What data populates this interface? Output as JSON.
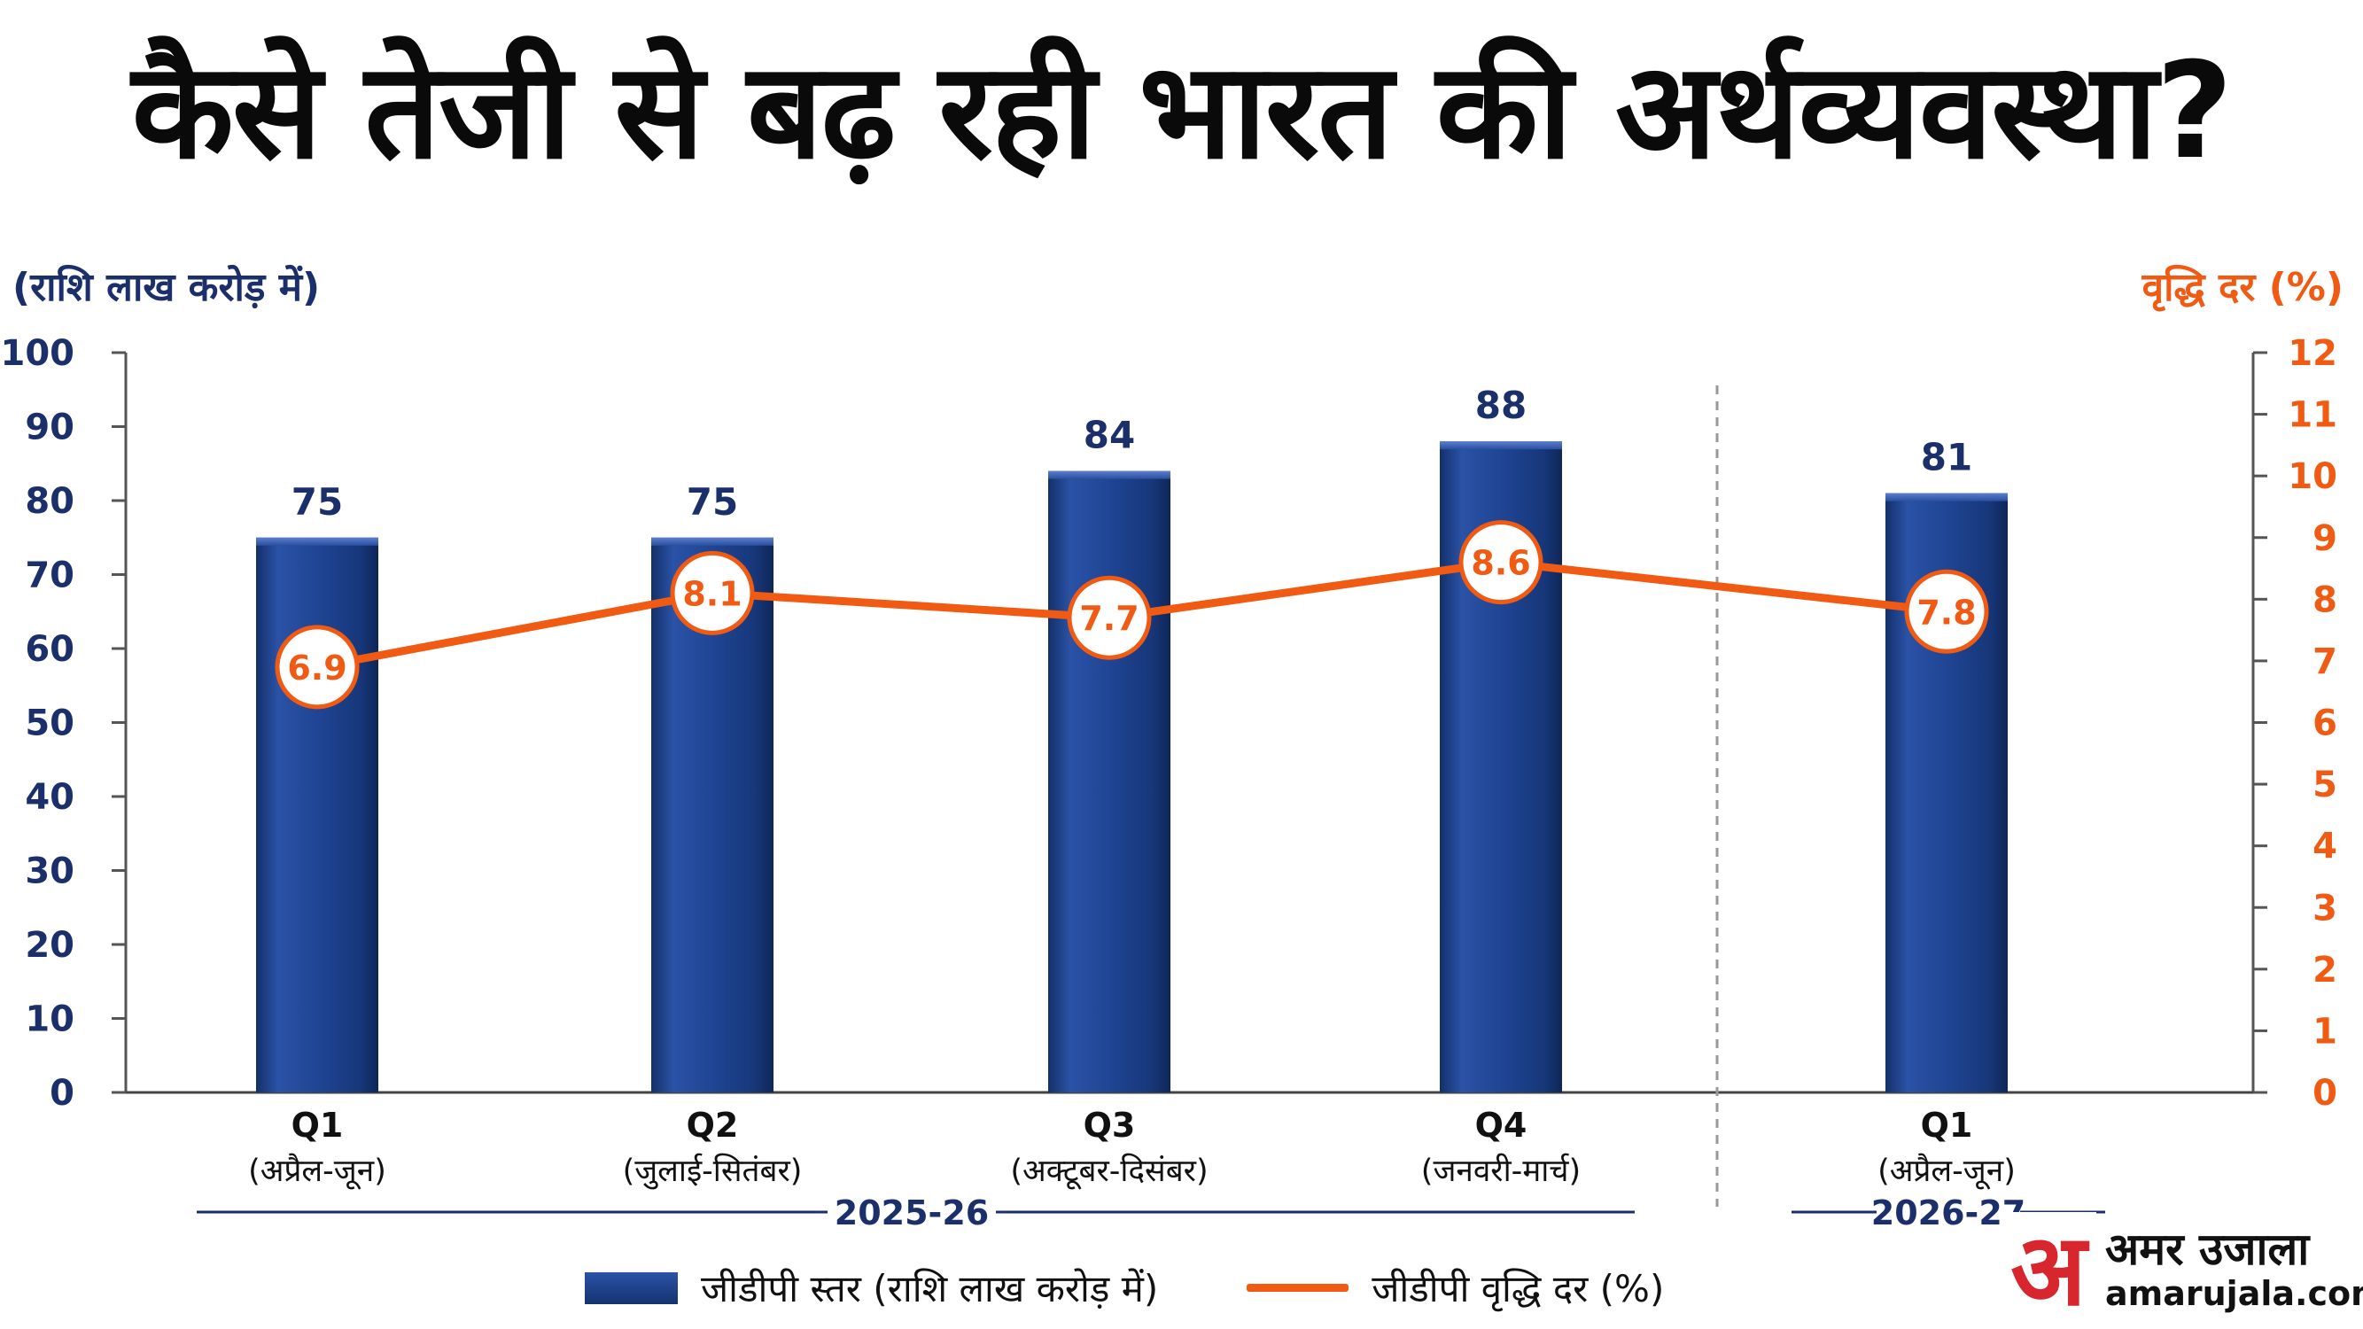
{
  "title": "कैसे तेजी से बढ़ रही भारत की अर्थव्यवस्था?",
  "left_axis_label": "(राशि लाख करोड़ में)",
  "right_axis_label": "वृद्धि दर (%)",
  "colors": {
    "bar": "#1d3f8c",
    "line": "#f05a12",
    "left_axis_text": "#1b2f6b",
    "right_axis_text": "#f05a12"
  },
  "chart_data": {
    "type": "bar",
    "categories": [
      {
        "quarter": "Q1",
        "months": "(अप्रैल-जून)"
      },
      {
        "quarter": "Q2",
        "months": "(जुलाई-सितंबर)"
      },
      {
        "quarter": "Q3",
        "months": "(अक्टूबर-दिसंबर)"
      },
      {
        "quarter": "Q4",
        "months": "(जनवरी-मार्च)"
      },
      {
        "quarter": "Q1",
        "months": "(अप्रैल-जून)"
      }
    ],
    "groups": [
      {
        "label": "2025-26",
        "categories": [
          0,
          1,
          2,
          3
        ]
      },
      {
        "label": "2026-27",
        "categories": [
          4
        ]
      }
    ],
    "series": [
      {
        "name": "जीडीपी स्तर (राशि लाख करोड़ में)",
        "type": "bar",
        "axis": "left",
        "values": [
          75,
          75,
          84,
          88,
          81
        ],
        "labels": [
          "75",
          "75",
          "84",
          "88",
          "81"
        ]
      },
      {
        "name": "जीडीपी वृद्धि दर (%)",
        "type": "line",
        "axis": "right",
        "values": [
          6.9,
          8.1,
          7.7,
          8.6,
          7.8
        ],
        "labels": [
          "6.9",
          "8.1",
          "7.7",
          "8.6",
          "7.8"
        ]
      }
    ],
    "left_axis": {
      "min": 0,
      "max": 100,
      "ticks": [
        "0",
        "10",
        "20",
        "30",
        "40",
        "50",
        "60",
        "70",
        "80",
        "90",
        "100"
      ]
    },
    "right_axis": {
      "min": 0,
      "max": 12,
      "ticks": [
        "0",
        "1",
        "2",
        "3",
        "4",
        "5",
        "6",
        "7",
        "8",
        "9",
        "10",
        "11",
        "12"
      ]
    },
    "grid": false,
    "legend_position": "bottom"
  },
  "logo": {
    "name": "अमर उजाला",
    "url": "amarujala.com",
    "mark": "अ"
  }
}
